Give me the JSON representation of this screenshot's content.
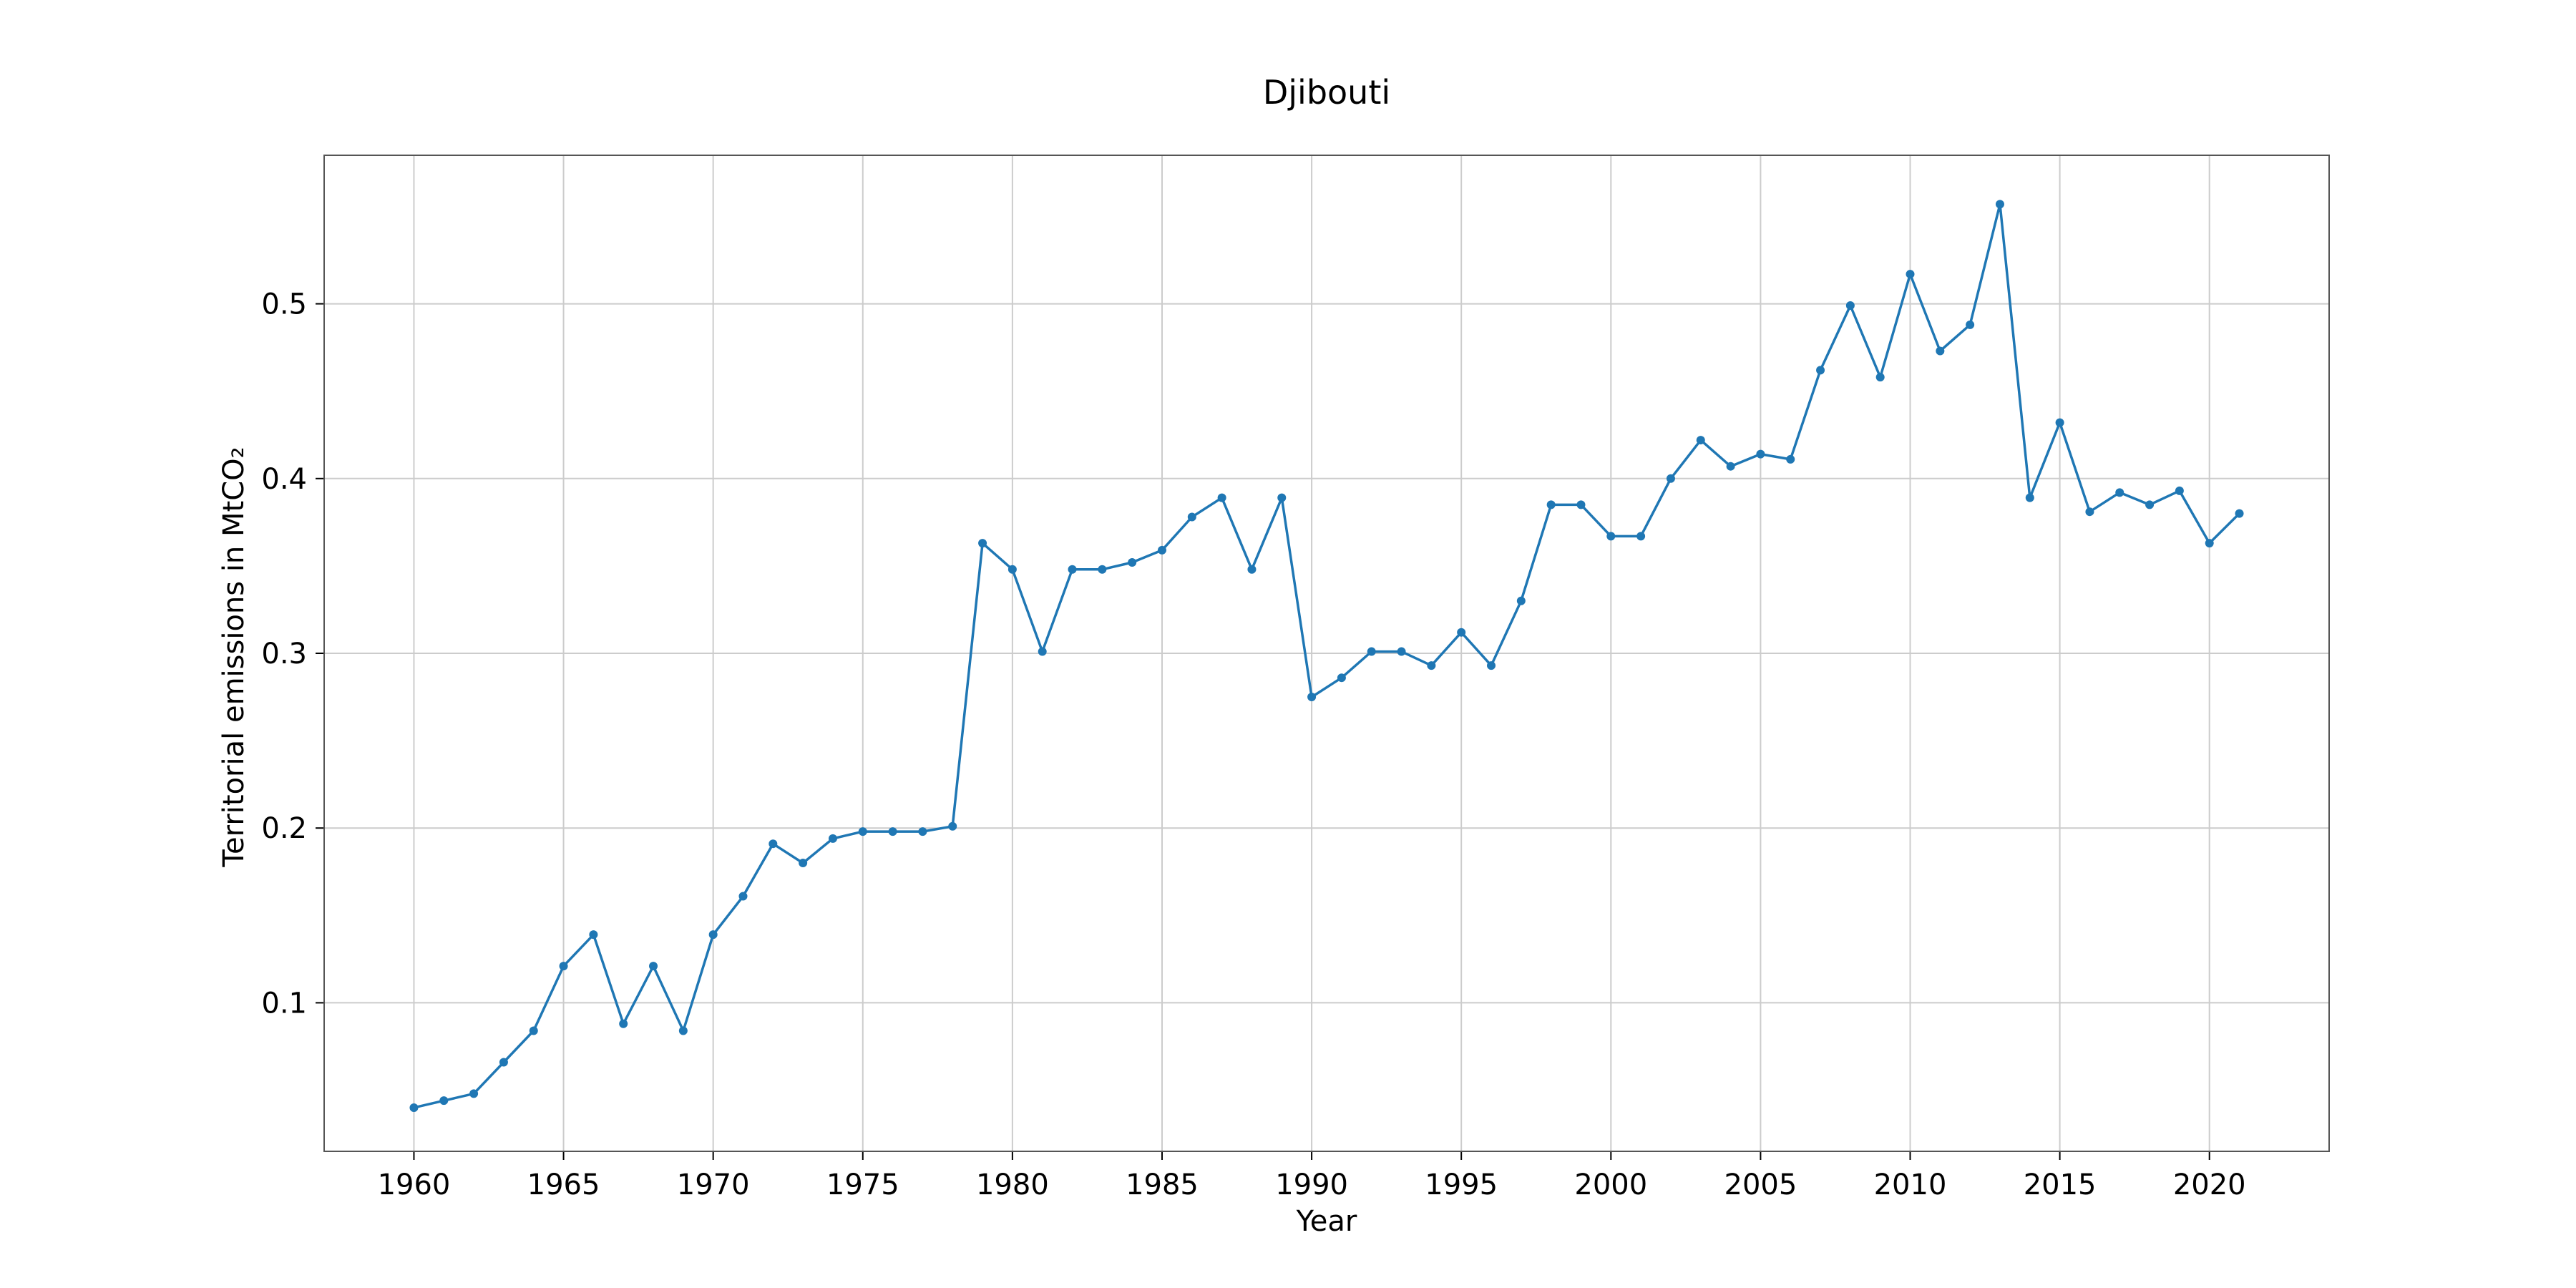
{
  "chart_data": {
    "type": "line",
    "title": "Djibouti",
    "xlabel": "Year",
    "ylabel": "Territorial emissions in MtCO₂",
    "xlim": [
      1957,
      2024
    ],
    "ylim": [
      0.015,
      0.585
    ],
    "xticks": [
      1960,
      1965,
      1970,
      1975,
      1980,
      1985,
      1990,
      1995,
      2000,
      2005,
      2010,
      2015,
      2020
    ],
    "xtick_labels": [
      "1960",
      "1965",
      "1970",
      "1975",
      "1980",
      "1985",
      "1990",
      "1995",
      "2000",
      "2005",
      "2010",
      "2015",
      "2020"
    ],
    "yticks": [
      0.1,
      0.2,
      0.3,
      0.4,
      0.5
    ],
    "ytick_labels": [
      "0.1",
      "0.2",
      "0.3",
      "0.4",
      "0.5"
    ],
    "grid": true,
    "series_color": "#1f77b4",
    "x": [
      1960,
      1961,
      1962,
      1963,
      1964,
      1965,
      1966,
      1967,
      1968,
      1969,
      1970,
      1971,
      1972,
      1973,
      1974,
      1975,
      1976,
      1977,
      1978,
      1979,
      1980,
      1981,
      1982,
      1983,
      1984,
      1985,
      1986,
      1987,
      1988,
      1989,
      1990,
      1991,
      1992,
      1993,
      1994,
      1995,
      1996,
      1997,
      1998,
      1999,
      2000,
      2001,
      2002,
      2003,
      2004,
      2005,
      2006,
      2007,
      2008,
      2009,
      2010,
      2011,
      2012,
      2013,
      2014,
      2015,
      2016,
      2017,
      2018,
      2019,
      2020,
      2021
    ],
    "series": [
      {
        "values": [
          0.04,
          0.044,
          0.048,
          0.066,
          0.084,
          0.121,
          0.139,
          0.088,
          0.121,
          0.084,
          0.139,
          0.161,
          0.191,
          0.18,
          0.194,
          0.198,
          0.198,
          0.198,
          0.201,
          0.363,
          0.348,
          0.301,
          0.348,
          0.348,
          0.352,
          0.359,
          0.378,
          0.389,
          0.348,
          0.389,
          0.275,
          0.286,
          0.301,
          0.301,
          0.293,
          0.312,
          0.293,
          0.33,
          0.385,
          0.385,
          0.367,
          0.367,
          0.4,
          0.422,
          0.407,
          0.414,
          0.411,
          0.462,
          0.499,
          0.458,
          0.517,
          0.473,
          0.488,
          0.557,
          0.389,
          0.432,
          0.381,
          0.392,
          0.385,
          0.393,
          0.363,
          0.38
        ]
      }
    ]
  }
}
